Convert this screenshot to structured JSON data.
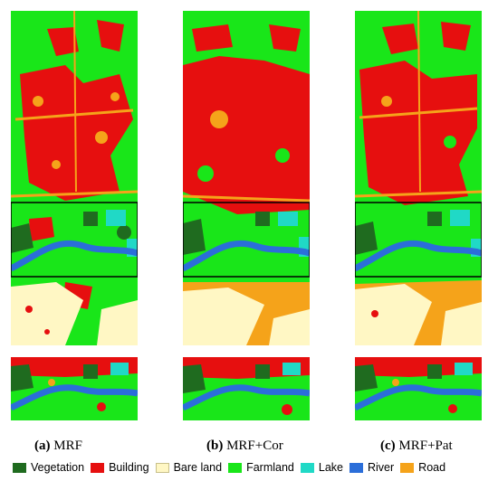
{
  "panels": [
    {
      "id": "a",
      "letter": "(a)",
      "method": "MRF"
    },
    {
      "id": "b",
      "letter": "(b)",
      "method": "MRF+Cor"
    },
    {
      "id": "c",
      "letter": "(c)",
      "method": "MRF+Pat"
    }
  ],
  "legend": [
    {
      "label": "Vegetation",
      "color": "#1f6b1f"
    },
    {
      "label": "Building",
      "color": "#e60f0f"
    },
    {
      "label": "Bare land",
      "color": "#fff7c4"
    },
    {
      "label": "Farmland",
      "color": "#19e619"
    },
    {
      "label": "Lake",
      "color": "#20d9c6"
    },
    {
      "label": "River",
      "color": "#2b6ed9"
    },
    {
      "label": "Road",
      "color": "#f5a31a"
    }
  ]
}
